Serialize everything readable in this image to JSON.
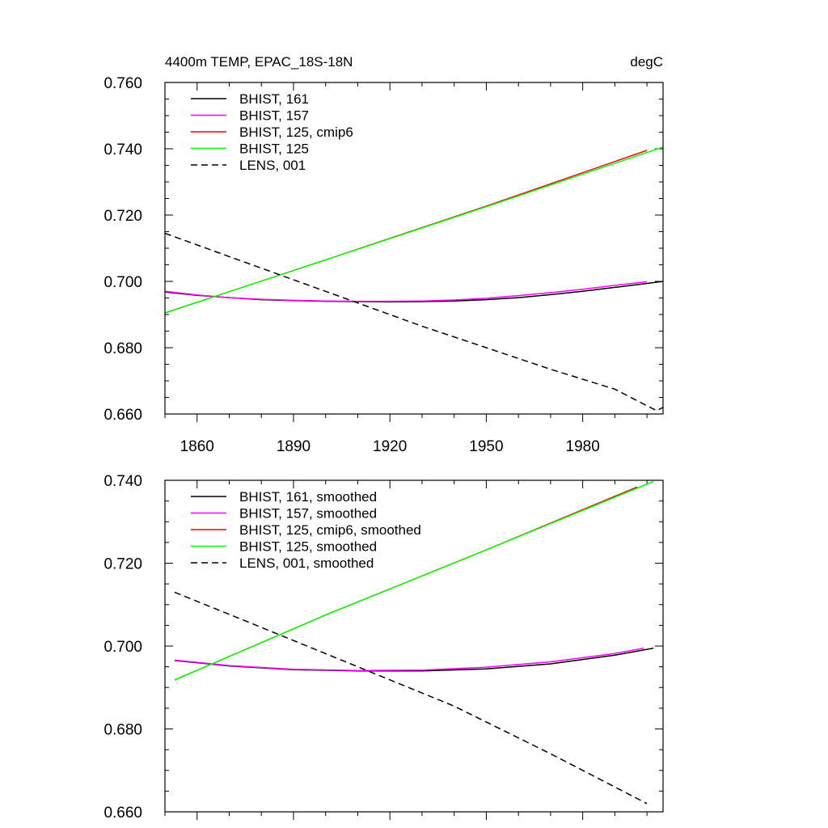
{
  "chart_data": [
    {
      "type": "line",
      "title": "4400m TEMP, EPAC_18S-18N",
      "units": "degC",
      "xlabel": "",
      "ylabel": "",
      "xlim": [
        1850,
        2005
      ],
      "ylim": [
        0.66,
        0.76
      ],
      "xticks": [
        1860,
        1890,
        1920,
        1950,
        1980
      ],
      "xtick_labels": [
        "1860",
        "1890",
        "1920",
        "1950",
        "1980"
      ],
      "yticks": [
        0.66,
        0.68,
        0.7,
        0.72,
        0.74,
        0.76
      ],
      "ytick_labels": [
        "0.660",
        "0.680",
        "0.700",
        "0.720",
        "0.740",
        "0.760"
      ],
      "legend_position": "top-left",
      "series": [
        {
          "name": "BHIST, 161",
          "color": "#000000",
          "dash": "solid",
          "x": [
            1850,
            1860,
            1870,
            1880,
            1890,
            1900,
            1910,
            1920,
            1930,
            1940,
            1950,
            1960,
            1970,
            1980,
            1990,
            2000,
            2005
          ],
          "y": [
            0.6968,
            0.6958,
            0.6951,
            0.6945,
            0.6942,
            0.694,
            0.6939,
            0.6938,
            0.6939,
            0.6941,
            0.6945,
            0.6951,
            0.696,
            0.697,
            0.6982,
            0.6994,
            0.7
          ]
        },
        {
          "name": "BHIST, 157",
          "color": "#ff00ff",
          "dash": "solid",
          "x": [
            1850,
            1860,
            1870,
            1880,
            1890,
            1900,
            1910,
            1920,
            1930,
            1940,
            1950,
            1960,
            1970,
            1980,
            1990,
            2000
          ],
          "y": [
            0.697,
            0.6959,
            0.6951,
            0.6946,
            0.6943,
            0.6941,
            0.694,
            0.694,
            0.6941,
            0.6944,
            0.6949,
            0.6957,
            0.6966,
            0.6976,
            0.6988,
            0.6999
          ]
        },
        {
          "name": "BHIST, 125, cmip6",
          "color": "#ff0000",
          "dash": "solid",
          "x": [
            1850,
            1900,
            1950,
            2000
          ],
          "y": [
            0.6905,
            0.7065,
            0.7227,
            0.7395
          ]
        },
        {
          "name": "BHIST, 125",
          "color": "#00ff00",
          "dash": "solid",
          "x": [
            1850,
            1900,
            1950,
            2005
          ],
          "y": [
            0.6905,
            0.7065,
            0.7225,
            0.7405
          ]
        },
        {
          "name": "LENS, 001",
          "color": "#000000",
          "dash": "dashed",
          "x": [
            1850,
            1870,
            1890,
            1910,
            1930,
            1950,
            1970,
            1990,
            2000,
            2003,
            2005
          ],
          "y": [
            0.7145,
            0.7075,
            0.7005,
            0.6935,
            0.6865,
            0.68,
            0.6735,
            0.6675,
            0.6625,
            0.661,
            0.662
          ]
        }
      ]
    },
    {
      "type": "line",
      "title": "",
      "xlabel": "",
      "ylabel": "",
      "xlim": [
        1850,
        2005
      ],
      "ylim": [
        0.66,
        0.74
      ],
      "xticks": [
        1860,
        1890,
        1920,
        1950,
        1980
      ],
      "xtick_labels": [],
      "yticks": [
        0.66,
        0.68,
        0.7,
        0.72,
        0.74
      ],
      "ytick_labels": [
        "0.660",
        "0.680",
        "0.700",
        "0.720",
        "0.740"
      ],
      "legend_position": "top-left",
      "series": [
        {
          "name": "BHIST, 161, smoothed",
          "color": "#000000",
          "dash": "solid",
          "x": [
            1853,
            1870,
            1890,
            1910,
            1930,
            1950,
            1970,
            1990,
            2002
          ],
          "y": [
            0.6965,
            0.6952,
            0.6943,
            0.694,
            0.694,
            0.6945,
            0.6957,
            0.6978,
            0.6995
          ]
        },
        {
          "name": "BHIST, 157, smoothed",
          "color": "#ff00ff",
          "dash": "solid",
          "x": [
            1853,
            1870,
            1890,
            1910,
            1930,
            1950,
            1970,
            1990,
            1999
          ],
          "y": [
            0.6966,
            0.6953,
            0.6944,
            0.6941,
            0.6942,
            0.6949,
            0.6962,
            0.6982,
            0.6995
          ]
        },
        {
          "name": "BHIST, 125, cmip6, smoothed",
          "color": "#ff0000",
          "dash": "solid",
          "x": [
            1853,
            1900,
            1950,
            1997
          ],
          "y": [
            0.6918,
            0.7075,
            0.7232,
            0.7384
          ]
        },
        {
          "name": "BHIST, 125, smoothed",
          "color": "#00ff00",
          "dash": "solid",
          "x": [
            1853,
            1900,
            1950,
            2002
          ],
          "y": [
            0.6918,
            0.7075,
            0.7232,
            0.7397
          ]
        },
        {
          "name": "LENS, 001, smoothed",
          "color": "#000000",
          "dash": "dashed",
          "x": [
            1853,
            1880,
            1910,
            1940,
            1970,
            2000
          ],
          "y": [
            0.713,
            0.7045,
            0.695,
            0.6855,
            0.674,
            0.662
          ]
        }
      ]
    }
  ]
}
